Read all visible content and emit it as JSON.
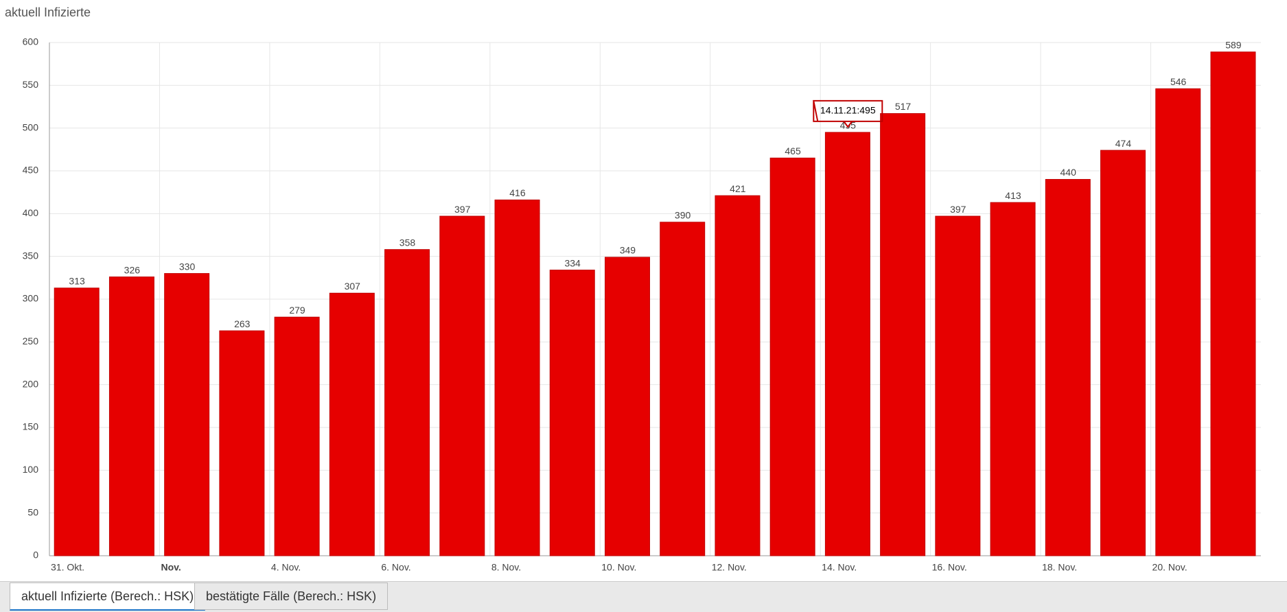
{
  "title": "aktuell Infizierte",
  "tabs": [
    "aktuell Infizierte (Berech.: HSK)",
    "bestätigte Fälle (Berech.: HSK)"
  ],
  "chart_data": {
    "type": "bar",
    "categories": [
      "31. Okt.",
      null,
      "Nov.",
      null,
      "4. Nov.",
      null,
      "6. Nov.",
      null,
      "8. Nov.",
      null,
      "10. Nov.",
      null,
      "12. Nov.",
      null,
      "14. Nov.",
      null,
      "16. Nov.",
      null,
      "18. Nov.",
      null,
      "20. Nov.",
      null
    ],
    "values": [
      313,
      326,
      330,
      263,
      279,
      307,
      358,
      397,
      416,
      334,
      349,
      390,
      421,
      465,
      495,
      517,
      397,
      413,
      440,
      474,
      546,
      589
    ],
    "color": "#e60000",
    "ylim": [
      0,
      600
    ],
    "yticks": [
      0,
      50,
      100,
      150,
      200,
      250,
      300,
      350,
      400,
      450,
      500,
      550,
      600
    ],
    "grid": true,
    "tooltip": "14.11.21:495"
  }
}
